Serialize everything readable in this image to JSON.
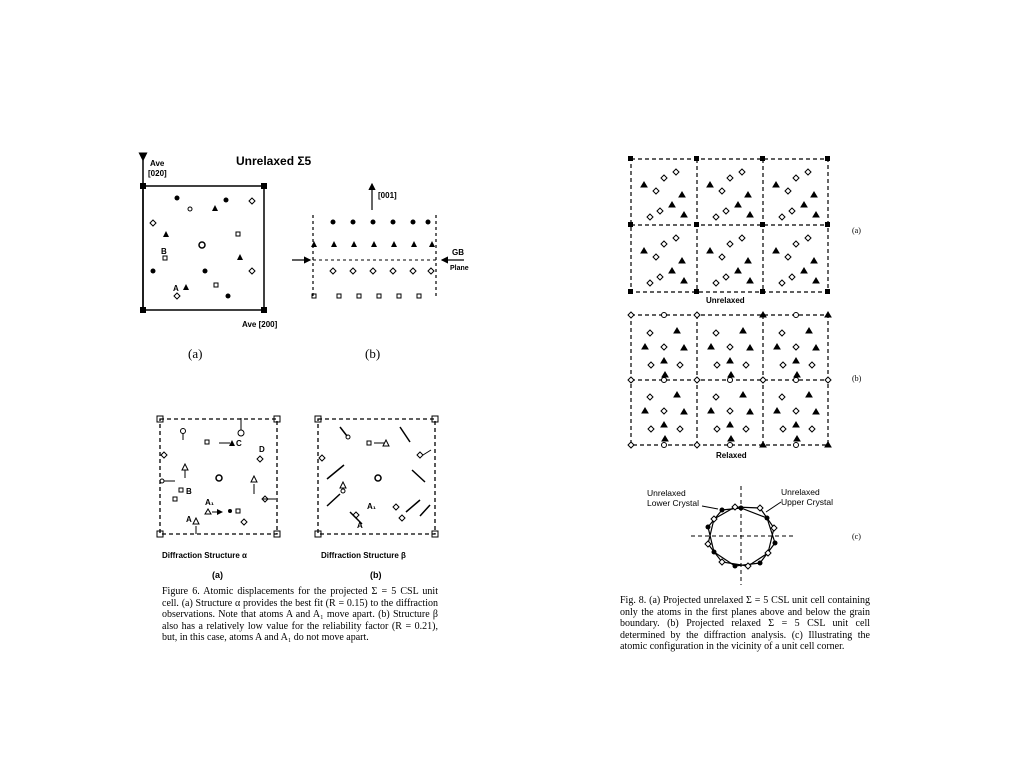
{
  "fig6_top": {
    "title": "Unrelaxed Σ5",
    "axis_y_label": "Ave",
    "axis_y_dir": "[020]",
    "axis_x_label": "Ave [200]",
    "axis_z_label": "[001]",
    "gb_label": "GB",
    "plane_label": "Plane",
    "atom_b": "B",
    "atom_a": "A",
    "panel_a": "(a)",
    "panel_b": "(b)"
  },
  "fig6_bottom": {
    "atom_c": "C",
    "atom_d": "D",
    "atom_b": "B",
    "atom_a1": "A₁",
    "atom_a": "A",
    "struct_alpha": "Diffraction Structure α",
    "struct_beta": "Diffraction Structure β",
    "panel_a": "(a)",
    "panel_b": "(b)"
  },
  "fig6_caption": "Figure 6. Atomic displacements for the projected Σ = 5 CSL unit cell. (a) Structure α provides the best fit (R = 0.15) to the diffraction observations. Note that atoms A and A₁ move apart. (b) Structure β also has a relatively low value for the reliability factor (R = 0.21), but, in this case, atoms A and A₁ do not move apart.",
  "fig8": {
    "unrelaxed": "Unrelaxed",
    "relaxed": "Relaxed",
    "panel_a": "(a)",
    "panel_b": "(b)",
    "panel_c": "(c)",
    "lower_1": "Unrelaxed",
    "lower_2": "Lower Crystal",
    "upper_1": "Unrelaxed",
    "upper_2": "Upper Crystal"
  },
  "fig8_caption": "Fig. 8. (a) Projected unrelaxed Σ = 5 CSL unit cell containing only the atoms in the first planes above and below the grain boundary. (b) Projected relaxed Σ = 5 CSL unit cell determined by the diffraction analysis. (c) Illustrating the atomic configuration in the vicinity of a unit cell corner."
}
